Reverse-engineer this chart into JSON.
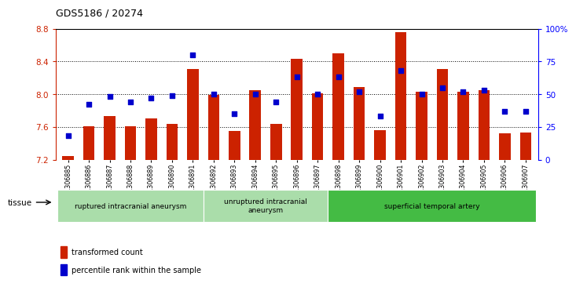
{
  "title": "GDS5186 / 20274",
  "samples": [
    "GSM1306885",
    "GSM1306886",
    "GSM1306887",
    "GSM1306888",
    "GSM1306889",
    "GSM1306890",
    "GSM1306891",
    "GSM1306892",
    "GSM1306893",
    "GSM1306894",
    "GSM1306895",
    "GSM1306896",
    "GSM1306897",
    "GSM1306898",
    "GSM1306899",
    "GSM1306900",
    "GSM1306901",
    "GSM1306902",
    "GSM1306903",
    "GSM1306904",
    "GSM1306905",
    "GSM1306906",
    "GSM1306907"
  ],
  "transformed_count": [
    7.24,
    7.61,
    7.73,
    7.61,
    7.7,
    7.64,
    8.31,
    7.99,
    7.55,
    8.05,
    7.64,
    8.43,
    8.01,
    8.5,
    8.09,
    7.56,
    8.76,
    8.03,
    8.31,
    8.03,
    8.05,
    7.52,
    7.53
  ],
  "percentile_rank": [
    18,
    42,
    48,
    44,
    47,
    49,
    80,
    50,
    35,
    50,
    44,
    63,
    50,
    63,
    52,
    33,
    68,
    50,
    55,
    52,
    53,
    37,
    37
  ],
  "group_configs": [
    {
      "label": "ruptured intracranial aneurysm",
      "start": 0,
      "end": 7,
      "color": "#aaddaa"
    },
    {
      "label": "unruptured intracranial\naneurysm",
      "start": 7,
      "end": 13,
      "color": "#aaddaa"
    },
    {
      "label": "superficial temporal artery",
      "start": 13,
      "end": 23,
      "color": "#44bb44"
    }
  ],
  "ylim": [
    7.2,
    8.8
  ],
  "yticks_left": [
    7.2,
    7.6,
    8.0,
    8.4,
    8.8
  ],
  "yticks_right": [
    0,
    25,
    50,
    75,
    100
  ],
  "bar_color": "#CC2200",
  "dot_color": "#0000CC",
  "background_color": "#ffffff",
  "tissue_label": "tissue"
}
